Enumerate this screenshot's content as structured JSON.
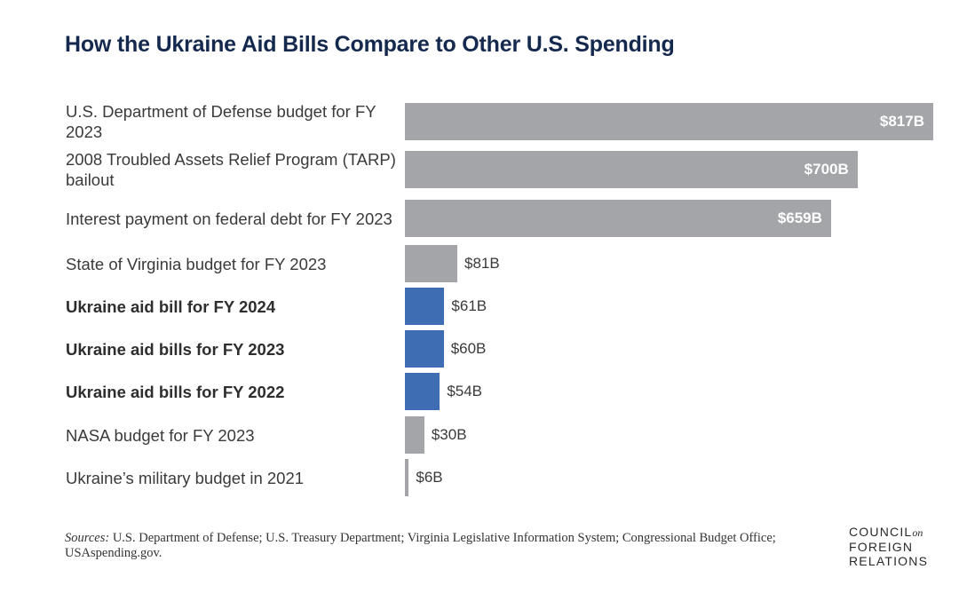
{
  "title": "How the Ukraine Aid Bills Compare to Other U.S. Spending",
  "sources_lead": "Sources:",
  "sources_text": "U.S. Department of Defense; U.S. Treasury Department; Virginia Legislative Information System; Congressional Budget Office; USAspending.gov.",
  "logo": {
    "line1": "COUNCIL",
    "line1_small": "on",
    "line2": "FOREIGN",
    "line3": "RELATIONS"
  },
  "colors": {
    "gray": "#a3a5a8",
    "blue": "#3f6db4",
    "title": "#14294d"
  },
  "chart_data": {
    "type": "bar",
    "orientation": "horizontal",
    "unit": "billion USD",
    "xlim": [
      0,
      817
    ],
    "categories": [
      "U.S. Department of Defense budget for FY 2023",
      "2008 Troubled Assets Relief Program (TARP) bailout",
      "Interest payment on federal debt for FY 2023",
      "State of Virginia budget for FY 2023",
      "Ukraine aid bill for FY 2024",
      "Ukraine aid bills for FY 2023",
      "Ukraine aid bills for FY 2022",
      "NASA budget for FY 2023",
      "Ukraine’s military budget in 2021"
    ],
    "values": [
      817,
      700,
      659,
      81,
      61,
      60,
      54,
      30,
      6
    ],
    "value_labels": [
      "$817B",
      "$700B",
      "$659B",
      "$81B",
      "$61B",
      "$60B",
      "$54B",
      "$30B",
      "$6B"
    ],
    "highlight": [
      false,
      false,
      false,
      false,
      true,
      true,
      true,
      false,
      false
    ]
  }
}
